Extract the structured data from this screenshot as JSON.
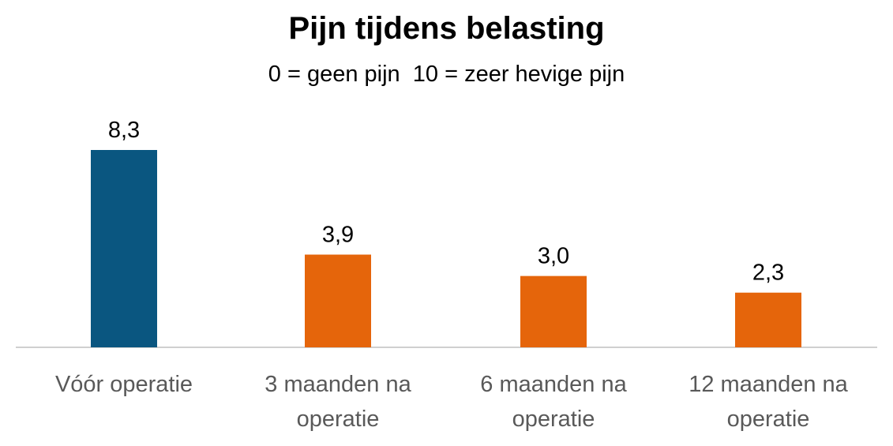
{
  "chart_data": {
    "type": "bar",
    "title": "Pijn tijdens belasting",
    "subtitle": "0 = geen pijn  10 = zeer hevige pijn",
    "categories": [
      [
        "Vóór operatie"
      ],
      [
        "3 maanden na",
        "operatie"
      ],
      [
        "6 maanden na",
        "operatie"
      ],
      [
        "12 maanden na",
        "operatie"
      ]
    ],
    "values": [
      8.3,
      3.9,
      3.0,
      2.3
    ],
    "data_labels": [
      "8,3",
      "3,9",
      "3,0",
      "2,3"
    ],
    "bar_colors": [
      "#0a5680",
      "#e5650b",
      "#e5650b",
      "#e5650b"
    ],
    "ylim": [
      0,
      10
    ],
    "xlabel": "",
    "ylabel": "",
    "grid": false,
    "legend": "none"
  }
}
